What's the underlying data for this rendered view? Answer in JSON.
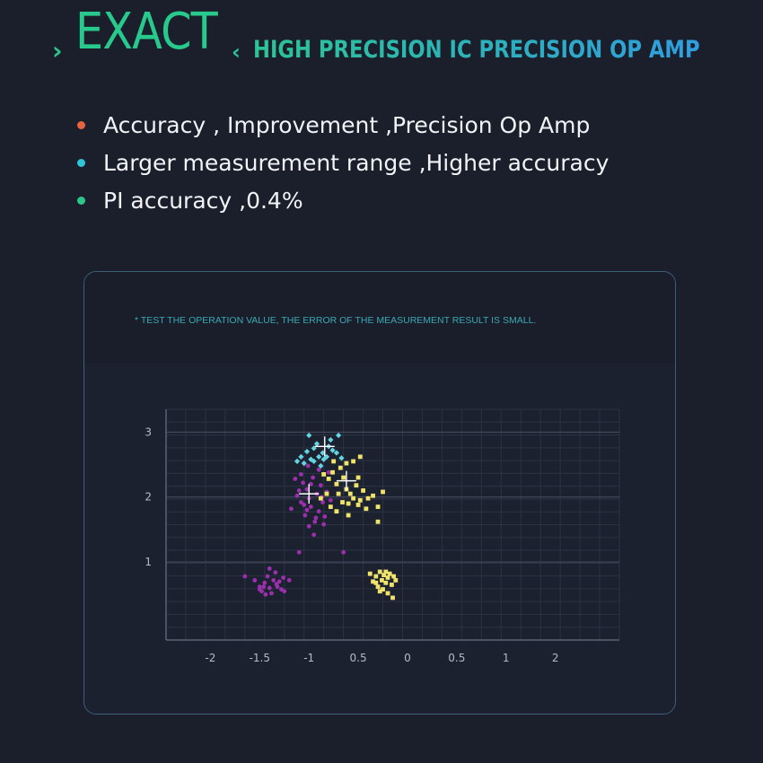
{
  "header": {
    "chevron_left": "›",
    "brand": "EXACT",
    "chevron_right": "‹",
    "subtitle": "HIGH PRECISION IC PRECISION OP AMP"
  },
  "bullets": [
    {
      "text": "Accuracy , Improvement ,Precision Op Amp",
      "color": "#e8633f"
    },
    {
      "text": "Larger measurement range ,Higher accuracy",
      "color": "#2fc4d6"
    },
    {
      "text": "PI accuracy ,0.4%",
      "color": "#2ec58a"
    }
  ],
  "card": {
    "note": "* TEST THE OPERATION VALUE, THE ERROR OF THE MEASUREMENT RESULT IS SMALL."
  },
  "chart_data": {
    "type": "scatter",
    "title": "",
    "xlabel": "",
    "ylabel": "",
    "x_ticks": [
      "-2",
      "-1.5",
      "-1",
      "0.5",
      "0",
      "0.5",
      "1",
      "2"
    ],
    "y_ticks": [
      "3",
      "2",
      "1"
    ],
    "grid": true,
    "series": [
      {
        "color": "#9b2fae",
        "marker": "circle",
        "points": [
          [
            -1.55,
            0.72
          ],
          [
            -1.5,
            0.62
          ],
          [
            -1.48,
            0.55
          ],
          [
            -1.45,
            0.68
          ],
          [
            -1.42,
            0.78
          ],
          [
            -1.4,
            0.6
          ],
          [
            -1.38,
            0.52
          ],
          [
            -1.36,
            0.72
          ],
          [
            -1.34,
            0.84
          ],
          [
            -1.32,
            0.62
          ],
          [
            -1.3,
            0.7
          ],
          [
            -1.28,
            0.58
          ],
          [
            -1.26,
            0.76
          ],
          [
            -1.5,
            0.58
          ],
          [
            -1.44,
            0.5
          ],
          [
            -1.4,
            0.9
          ],
          [
            -1.33,
            0.66
          ],
          [
            -1.46,
            0.62
          ],
          [
            -1.25,
            0.55
          ],
          [
            -1.2,
            0.72
          ],
          [
            -1.65,
            0.78
          ],
          [
            -1.1,
            1.15
          ],
          [
            -0.65,
            1.15
          ],
          [
            -1.18,
            1.82
          ],
          [
            -1.12,
            2.02
          ],
          [
            -1.08,
            1.92
          ],
          [
            -1.06,
            2.22
          ],
          [
            -1.04,
            1.72
          ],
          [
            -1.02,
            2.12
          ],
          [
            -1.0,
            1.98
          ],
          [
            -0.98,
            1.85
          ],
          [
            -0.96,
            2.3
          ],
          [
            -0.94,
            1.62
          ],
          [
            -0.92,
            2.05
          ],
          [
            -0.9,
            1.78
          ],
          [
            -0.88,
            2.18
          ],
          [
            -0.86,
            1.92
          ],
          [
            -0.84,
            1.7
          ],
          [
            -0.82,
            2.08
          ],
          [
            -0.8,
            2.38
          ],
          [
            -1.14,
            2.28
          ],
          [
            -1.0,
            1.55
          ],
          [
            -0.95,
            1.42
          ],
          [
            -1.05,
            1.88
          ],
          [
            -0.9,
            2.42
          ],
          [
            -0.78,
            1.95
          ],
          [
            -1.1,
            2.1
          ],
          [
            -0.85,
            1.58
          ],
          [
            -0.98,
            2.2
          ],
          [
            -1.02,
            1.8
          ],
          [
            -0.87,
            2.0
          ],
          [
            -1.08,
            2.35
          ],
          [
            -0.93,
            1.68
          ],
          [
            -1.01,
            2.48
          ]
        ]
      },
      {
        "color": "#62d4e2",
        "marker": "diamond",
        "points": [
          [
            -1.0,
            2.95
          ],
          [
            -0.7,
            2.95
          ],
          [
            -0.95,
            2.75
          ],
          [
            -0.86,
            2.68
          ],
          [
            -0.8,
            2.78
          ],
          [
            -0.76,
            2.72
          ],
          [
            -0.92,
            2.82
          ],
          [
            -0.82,
            2.62
          ],
          [
            -0.72,
            2.68
          ],
          [
            -0.85,
            2.58
          ],
          [
            -1.12,
            2.55
          ],
          [
            -1.05,
            2.52
          ],
          [
            -0.9,
            2.62
          ],
          [
            -1.08,
            2.62
          ],
          [
            -0.78,
            2.88
          ],
          [
            -0.95,
            2.55
          ],
          [
            -0.88,
            2.48
          ],
          [
            -1.02,
            2.7
          ],
          [
            -0.98,
            2.58
          ],
          [
            -0.67,
            2.6
          ]
        ]
      },
      {
        "color": "#f0e36a",
        "marker": "square",
        "points": [
          [
            -0.85,
            2.35
          ],
          [
            -0.8,
            2.28
          ],
          [
            -0.76,
            2.38
          ],
          [
            -0.72,
            2.2
          ],
          [
            -0.7,
            2.05
          ],
          [
            -0.68,
            2.45
          ],
          [
            -0.65,
            2.3
          ],
          [
            -0.62,
            2.12
          ],
          [
            -0.6,
            1.9
          ],
          [
            -0.58,
            2.05
          ],
          [
            -0.55,
            1.98
          ],
          [
            -0.52,
            2.18
          ],
          [
            -0.5,
            1.88
          ],
          [
            -0.48,
            1.95
          ],
          [
            -0.45,
            2.1
          ],
          [
            -0.4,
            1.98
          ],
          [
            -0.35,
            2.02
          ],
          [
            -0.3,
            1.85
          ],
          [
            -0.25,
            2.08
          ],
          [
            -0.78,
            1.85
          ],
          [
            -0.72,
            1.78
          ],
          [
            -0.66,
            1.92
          ],
          [
            -0.82,
            2.05
          ],
          [
            -0.62,
            2.52
          ],
          [
            -0.55,
            2.55
          ],
          [
            -0.48,
            2.62
          ],
          [
            -0.88,
            1.98
          ],
          [
            -0.6,
            1.72
          ],
          [
            -0.42,
            1.82
          ],
          [
            -0.3,
            1.62
          ],
          [
            -0.5,
            2.3
          ],
          [
            -0.75,
            2.55
          ],
          [
            -0.38,
            0.82
          ],
          [
            -0.35,
            0.7
          ],
          [
            -0.32,
            0.78
          ],
          [
            -0.3,
            0.62
          ],
          [
            -0.28,
            0.85
          ],
          [
            -0.26,
            0.72
          ],
          [
            -0.25,
            0.58
          ],
          [
            -0.24,
            0.8
          ],
          [
            -0.22,
            0.68
          ],
          [
            -0.2,
            0.76
          ],
          [
            -0.18,
            0.82
          ],
          [
            -0.16,
            0.65
          ],
          [
            -0.14,
            0.78
          ],
          [
            -0.28,
            0.55
          ],
          [
            -0.2,
            0.52
          ],
          [
            -0.15,
            0.45
          ],
          [
            -0.32,
            0.68
          ],
          [
            -0.22,
            0.85
          ],
          [
            -0.12,
            0.72
          ]
        ]
      }
    ],
    "centroids": [
      [
        -1.0,
        2.05
      ],
      [
        -0.84,
        2.78
      ],
      [
        -0.62,
        2.25
      ]
    ]
  }
}
